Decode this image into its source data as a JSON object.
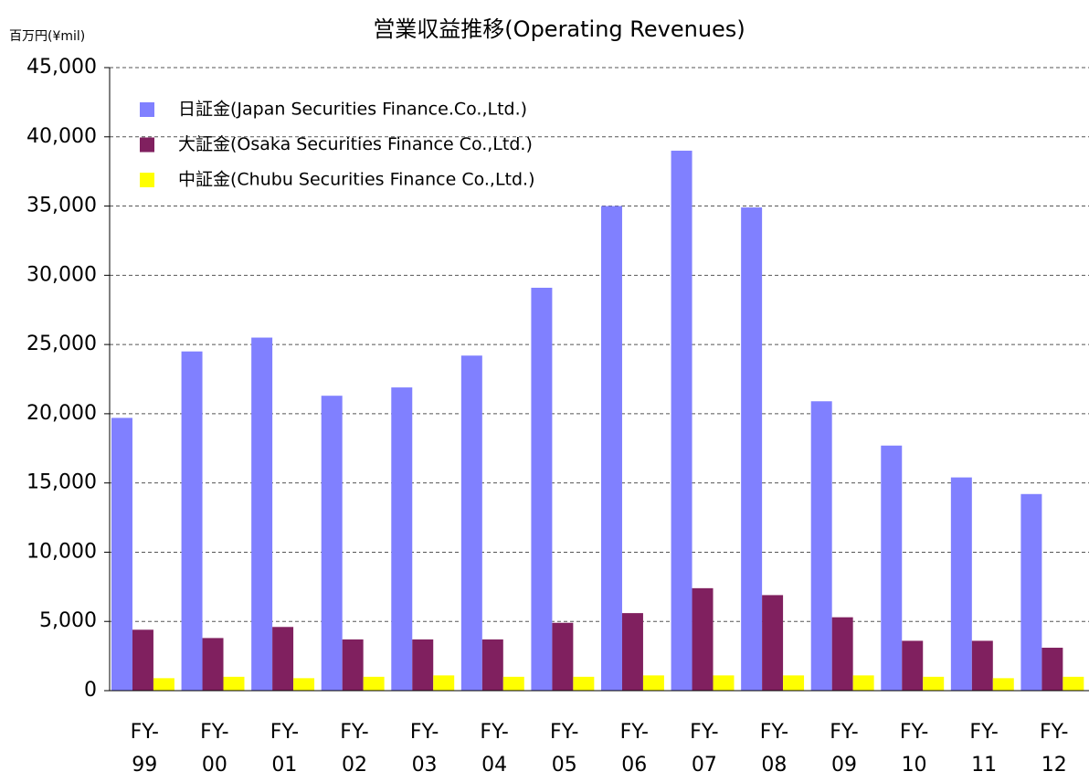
{
  "chart_data": {
    "type": "bar",
    "title": "営業収益推移(Operating Revenues)",
    "y_label": "百万円(¥mil)",
    "categories": [
      "FY-\n99",
      "FY-\n00",
      "FY-\n01",
      "FY-\n02",
      "FY-\n03",
      "FY-\n04",
      "FY-\n05",
      "FY-\n06",
      "FY-\n07",
      "FY-\n08",
      "FY-\n09",
      "FY-\n10",
      "FY-\n11",
      "FY-\n12"
    ],
    "series": [
      {
        "name": "日証金(Japan Securities Finance.Co.,Ltd.)",
        "color": "#8080ff",
        "values": [
          19700,
          24500,
          25500,
          21300,
          21900,
          24200,
          29100,
          35000,
          39000,
          34900,
          20900,
          17700,
          15400,
          14200
        ]
      },
      {
        "name": "大証金(Osaka Securities Finance Co.,Ltd.)",
        "color": "#80205f",
        "values": [
          4400,
          3800,
          4600,
          3700,
          3700,
          3700,
          4900,
          5600,
          7400,
          6900,
          5300,
          3600,
          3600,
          3100
        ]
      },
      {
        "name": "中証金(Chubu Securities Finance Co.,Ltd.)",
        "color": "#ffff00",
        "values": [
          900,
          1000,
          900,
          1000,
          1100,
          1000,
          1000,
          1100,
          1100,
          1100,
          1100,
          1000,
          900,
          1000
        ]
      }
    ],
    "ylim": [
      0,
      45000
    ],
    "yticks": [
      0,
      {
        "value": 5000,
        "label": "5,000"
      },
      {
        "value": 10000,
        "label": "10,000"
      },
      {
        "value": 15000,
        "label": "15,000"
      },
      {
        "value": 20000,
        "label": "20,000"
      },
      {
        "value": 25000,
        "label": "25,000"
      },
      {
        "value": 30000,
        "label": "30,000"
      },
      {
        "value": 35000,
        "label": "35,000"
      },
      {
        "value": 40000,
        "label": "40,000"
      },
      {
        "value": 45000,
        "label": "45,000"
      }
    ],
    "grid": true,
    "legend": "upper left"
  }
}
